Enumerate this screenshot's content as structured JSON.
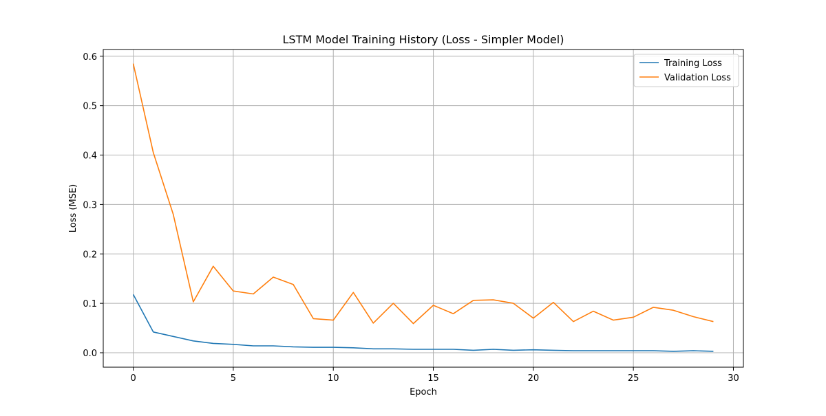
{
  "chart_data": {
    "type": "line",
    "title": "LSTM Model Training History (Loss - Simpler Model)",
    "xlabel": "Epoch",
    "ylabel": "Loss (MSE)",
    "xlim": [
      -1.5,
      30.5
    ],
    "ylim": [
      -0.0292,
      0.6136
    ],
    "xticks": [
      0,
      5,
      10,
      15,
      20,
      25,
      30
    ],
    "yticks": [
      0.0,
      0.1,
      0.2,
      0.3,
      0.4,
      0.5,
      0.6
    ],
    "xtick_labels": [
      "0",
      "5",
      "10",
      "15",
      "20",
      "25",
      "30"
    ],
    "ytick_labels": [
      "0.0",
      "0.1",
      "0.2",
      "0.3",
      "0.4",
      "0.5",
      "0.6"
    ],
    "grid": true,
    "legend_position": "top-right",
    "x": [
      0,
      1,
      2,
      3,
      4,
      5,
      6,
      7,
      8,
      9,
      10,
      11,
      12,
      13,
      14,
      15,
      16,
      17,
      18,
      19,
      20,
      21,
      22,
      23,
      24,
      25,
      26,
      27,
      28,
      29
    ],
    "series": [
      {
        "name": "Training Loss",
        "color": "#1f77b4",
        "values": [
          0.118,
          0.042,
          0.033,
          0.024,
          0.019,
          0.017,
          0.014,
          0.014,
          0.012,
          0.011,
          0.011,
          0.01,
          0.008,
          0.008,
          0.007,
          0.007,
          0.007,
          0.005,
          0.007,
          0.005,
          0.006,
          0.005,
          0.004,
          0.004,
          0.004,
          0.004,
          0.004,
          0.003,
          0.004,
          0.003
        ]
      },
      {
        "name": "Validation Loss",
        "color": "#ff7f0e",
        "values": [
          0.585,
          0.405,
          0.28,
          0.103,
          0.175,
          0.125,
          0.119,
          0.153,
          0.138,
          0.069,
          0.066,
          0.122,
          0.06,
          0.1,
          0.059,
          0.096,
          0.079,
          0.106,
          0.107,
          0.1,
          0.07,
          0.102,
          0.063,
          0.084,
          0.066,
          0.072,
          0.092,
          0.086,
          0.073,
          0.063
        ]
      }
    ]
  }
}
